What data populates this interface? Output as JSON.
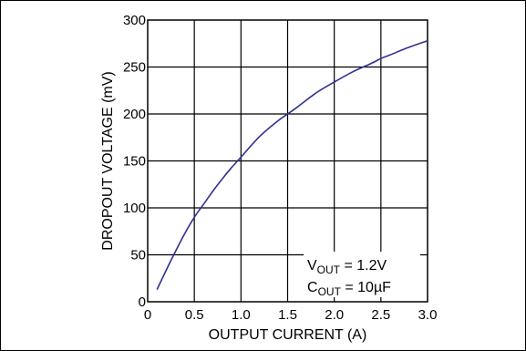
{
  "chart_data": {
    "type": "line",
    "xlabel": "OUTPUT CURRENT (A)",
    "ylabel": "DROPOUT VOLTAGE (mV)",
    "xlim": [
      0,
      3.0
    ],
    "ylim": [
      0,
      300
    ],
    "x_ticks": [
      "0",
      "0.5",
      "1.0",
      "1.5",
      "2.0",
      "2.5",
      "3.0"
    ],
    "y_ticks": [
      "0",
      "50",
      "100",
      "150",
      "200",
      "250",
      "300"
    ],
    "grid": true,
    "series": [
      {
        "x": [
          0.1,
          0.2,
          0.3,
          0.4,
          0.5,
          0.6,
          0.7,
          0.8,
          0.9,
          1.0,
          1.2,
          1.4,
          1.5,
          1.6,
          1.8,
          2.0,
          2.2,
          2.4,
          2.5,
          2.6,
          2.8,
          3.0
        ],
        "y": [
          13,
          34,
          54,
          73,
          90,
          104,
          118,
          131,
          143,
          154,
          176,
          193,
          200,
          207,
          222,
          234,
          245,
          254,
          259,
          263,
          271,
          278
        ],
        "color": "#2e3192"
      }
    ],
    "annotation": {
      "line1": {
        "main": "V",
        "sub": "OUT",
        "rest": " = 1.2V"
      },
      "line2": {
        "main": "C",
        "sub": "OUT",
        "rest": " = 10µF"
      }
    }
  }
}
